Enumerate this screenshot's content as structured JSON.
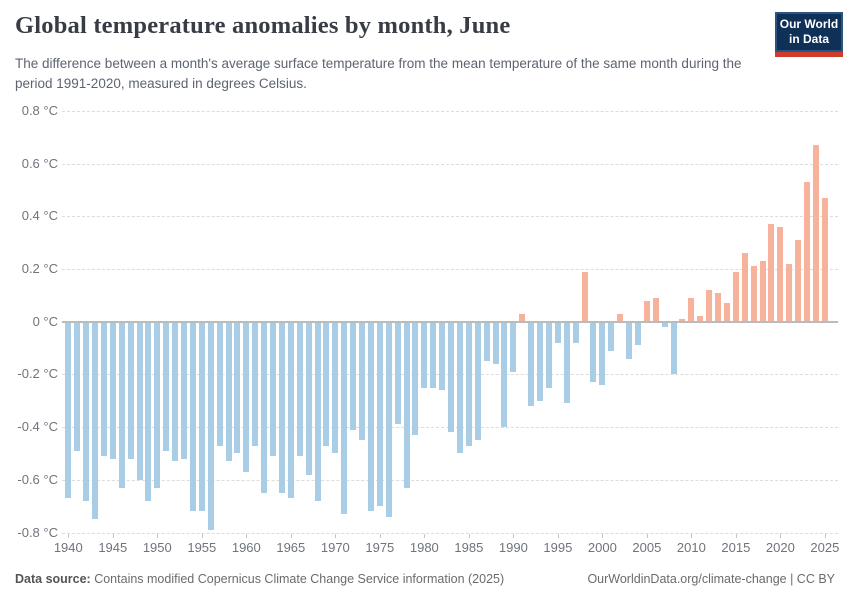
{
  "header": {
    "title": "Global temperature anomalies by month, June",
    "subtitle": "The difference between a month's average surface temperature from the mean temperature of the same month during the period 1991-2020, measured in degrees Celsius.",
    "logo": {
      "line1": "Our World",
      "line2": "in Data"
    }
  },
  "footer": {
    "source_label": "Data source:",
    "source_text": " Contains modified Copernicus Climate Change Service information (2025)",
    "right_text": "OurWorldinData.org/climate-change | CC BY"
  },
  "colors": {
    "positive_bar": "#f6b29a",
    "negative_bar": "#a8cde4",
    "grid": "#dcdcdc",
    "zero_line": "#b8bcbe",
    "logo_navy": "#0f3057",
    "logo_red": "#cf3c2c"
  },
  "chart_data": {
    "type": "bar",
    "title": "Global temperature anomalies by month, June",
    "xlabel": "",
    "ylabel": "degrees Celsius",
    "unit_suffix": " °C",
    "start_year": 1940,
    "end_year": 2025,
    "ylim": [
      -0.8,
      0.8
    ],
    "ytick_step": 0.2,
    "grid": "horizontal-dashed",
    "legend": "none",
    "ytick_labels": [
      "0.8 °C",
      "0.6 °C",
      "0.4 °C",
      "0.2 °C",
      "0 °C",
      "-0.2 °C",
      "-0.4 °C",
      "-0.6 °C",
      "-0.8 °C"
    ],
    "xticks": [
      1940,
      1945,
      1950,
      1955,
      1960,
      1965,
      1970,
      1975,
      1980,
      1985,
      1990,
      1995,
      2000,
      2005,
      2010,
      2015,
      2020,
      2025
    ],
    "values": [
      -0.67,
      -0.49,
      -0.68,
      -0.75,
      -0.51,
      -0.52,
      -0.63,
      -0.52,
      -0.6,
      -0.68,
      -0.63,
      -0.49,
      -0.53,
      -0.52,
      -0.72,
      -0.72,
      -0.79,
      -0.47,
      -0.53,
      -0.5,
      -0.57,
      -0.47,
      -0.65,
      -0.51,
      -0.65,
      -0.67,
      -0.51,
      -0.58,
      -0.68,
      -0.47,
      -0.5,
      -0.73,
      -0.41,
      -0.45,
      -0.72,
      -0.7,
      -0.74,
      -0.39,
      -0.63,
      -0.43,
      -0.25,
      -0.25,
      -0.26,
      -0.42,
      -0.5,
      -0.47,
      -0.45,
      -0.15,
      -0.16,
      -0.4,
      -0.19,
      0.03,
      -0.32,
      -0.3,
      -0.25,
      -0.08,
      -0.31,
      -0.08,
      0.19,
      -0.23,
      -0.24,
      -0.11,
      0.03,
      -0.14,
      -0.09,
      0.08,
      0.09,
      -0.02,
      -0.2,
      0.01,
      0.09,
      0.02,
      0.12,
      0.11,
      0.07,
      0.19,
      0.26,
      0.21,
      0.23,
      0.37,
      0.36,
      0.22,
      0.31,
      0.53,
      0.67,
      0.47
    ]
  }
}
